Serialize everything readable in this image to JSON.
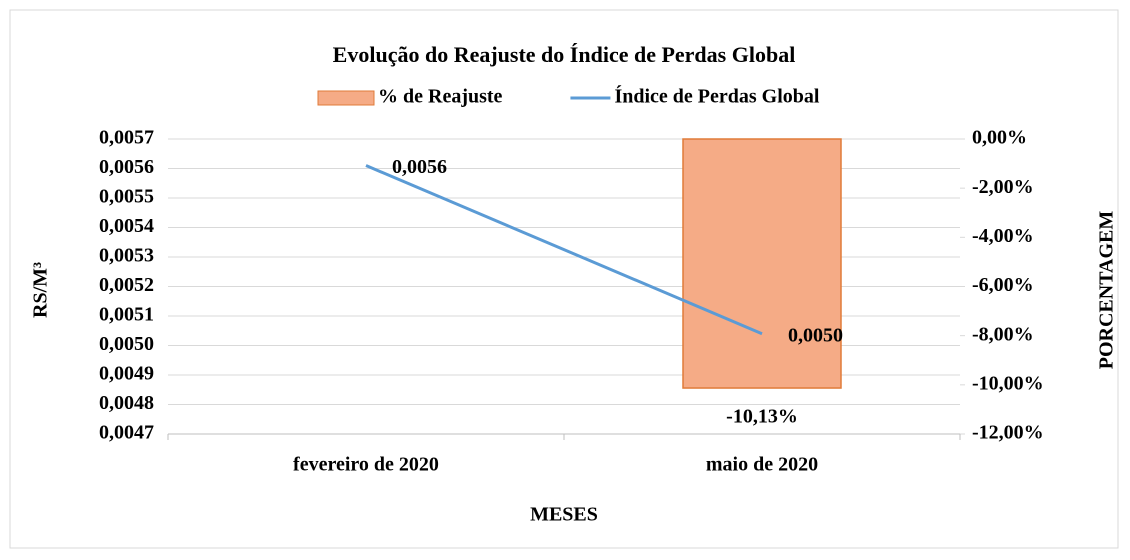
{
  "chart_data": {
    "type": "bar_line",
    "title": "Evolução do Reajuste do Índice de Perdas Global",
    "x_label": "MESES",
    "y_label": "RS/M³",
    "y2_label": "PORCENTAGEM",
    "categories": [
      "fevereiro de 2020",
      "maio de 2020"
    ],
    "series": [
      {
        "name": "% de Reajuste",
        "type": "bar",
        "axis": "y2",
        "color": "#f5ab86",
        "values": [
          null,
          -10.13
        ],
        "value_labels": [
          null,
          "-10,13%"
        ]
      },
      {
        "name": "Índice de Perdas Global",
        "type": "line",
        "axis": "y",
        "color": "#5b9bd5",
        "values": [
          0.00561,
          0.00504
        ],
        "value_labels": [
          "0,0056",
          "0,0050"
        ]
      }
    ],
    "ylim": [
      0.0047,
      0.0057
    ],
    "yticks": [
      {
        "value": 0.0047,
        "label": "0,0047"
      },
      {
        "value": 0.0048,
        "label": "0,0048"
      },
      {
        "value": 0.0049,
        "label": "0,0049"
      },
      {
        "value": 0.005,
        "label": "0,0050"
      },
      {
        "value": 0.0051,
        "label": "0,0051"
      },
      {
        "value": 0.0052,
        "label": "0,0052"
      },
      {
        "value": 0.0053,
        "label": "0,0053"
      },
      {
        "value": 0.0054,
        "label": "0,0054"
      },
      {
        "value": 0.0055,
        "label": "0,0055"
      },
      {
        "value": 0.0056,
        "label": "0,0056"
      },
      {
        "value": 0.0057,
        "label": "0,0057"
      }
    ],
    "y2lim": [
      -12,
      0
    ],
    "y2ticks": [
      {
        "value": -12,
        "label": "-12,00%"
      },
      {
        "value": -10,
        "label": "-10,00%"
      },
      {
        "value": -8,
        "label": "-8,00%"
      },
      {
        "value": -6,
        "label": "-6,00%"
      },
      {
        "value": -4,
        "label": "-4,00%"
      },
      {
        "value": -2,
        "label": "-2,00%"
      },
      {
        "value": 0,
        "label": "0,00%"
      }
    ],
    "grid": true,
    "legend": "top"
  }
}
